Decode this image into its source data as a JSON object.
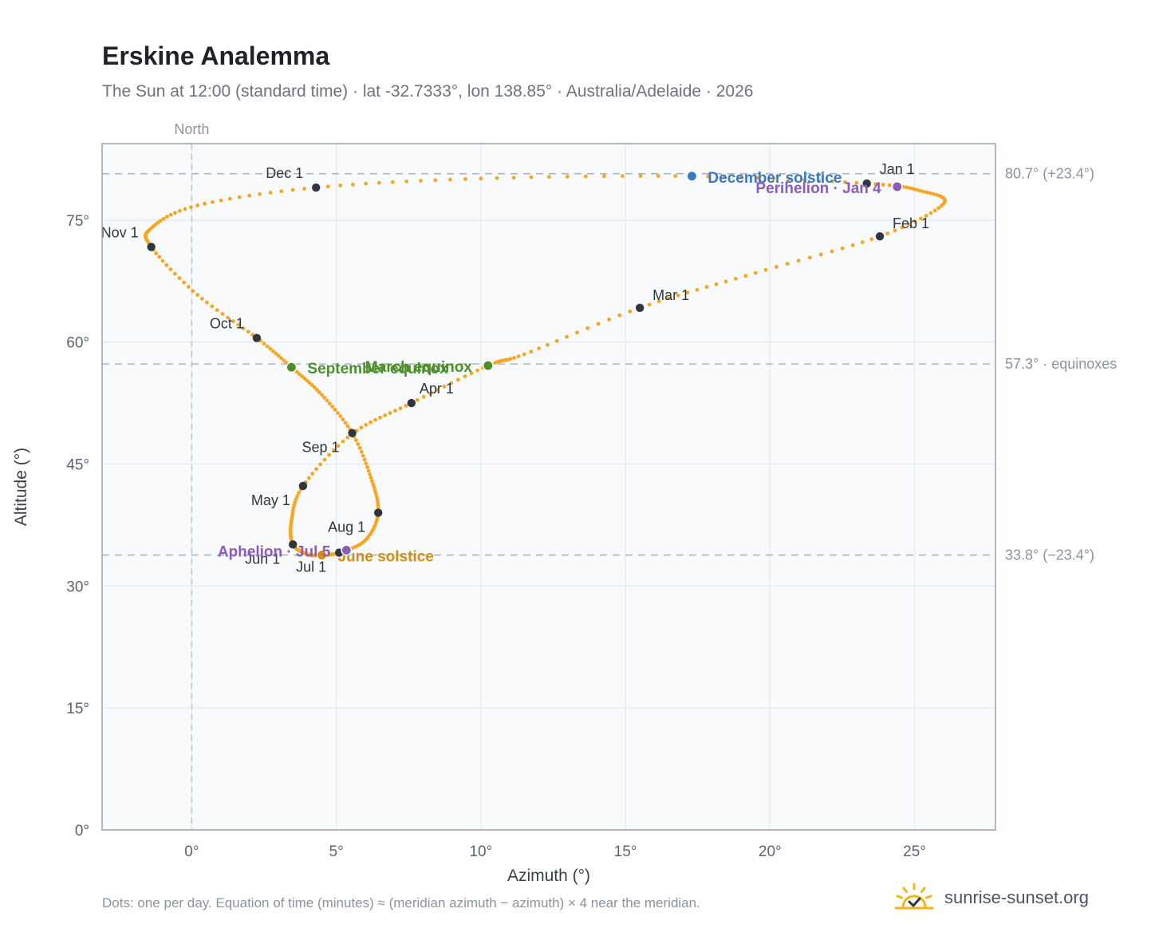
{
  "header": {
    "title": "Erskine Analemma",
    "subtitle": "The Sun at 12:00 (standard time) · lat -32.7333°, lon 138.85° · Australia/Adelaide · 2026"
  },
  "footer": {
    "note": "Dots: one per day. Equation of time (minutes) ≈ (meridian azimuth − azimuth) × 4 near the meridian.",
    "brand": "sunrise-sunset.org"
  },
  "icons": {
    "brand": "sun-check-icon"
  },
  "colors": {
    "dots": "#f5a623",
    "marker": "#2f3640",
    "equinox": "#4e8f2d",
    "december_solstice": "#3b78c2",
    "june_solstice": "#d18e16",
    "apsis": "#8b5cb8",
    "reference_line": "#aab4c0",
    "north_line": "#b6c8d8"
  },
  "chart_data": {
    "type": "scatter",
    "xlabel": "Azimuth (°)",
    "ylabel": "Altitude (°)",
    "xlim": [
      -3.1,
      27.8
    ],
    "ylim": [
      0,
      84.4
    ],
    "x_ticks": [
      0,
      5,
      10,
      15,
      20,
      25
    ],
    "x_tick_labels": [
      "0°",
      "5°",
      "10°",
      "15°",
      "20°",
      "25°"
    ],
    "y_ticks": [
      0,
      15,
      30,
      45,
      60,
      75
    ],
    "y_tick_labels": [
      "0°",
      "15°",
      "30°",
      "45°",
      "60°",
      "75°"
    ],
    "grid": true,
    "north_line": {
      "x": 0,
      "label": "North"
    },
    "reference_lines": [
      {
        "y": 80.7,
        "label": "80.7° (+23.4°)"
      },
      {
        "y": 57.3,
        "label": "57.3° · equinoxes"
      },
      {
        "y": 33.8,
        "label": "33.8° (−23.4°)"
      }
    ],
    "month_markers": [
      {
        "label": "Jan 1",
        "x": 23.35,
        "y": 79.5
      },
      {
        "label": "Feb 1",
        "x": 23.8,
        "y": 73.0
      },
      {
        "label": "Mar 1",
        "x": 15.5,
        "y": 64.2
      },
      {
        "label": "Apr 1",
        "x": 7.6,
        "y": 52.5
      },
      {
        "label": "May 1",
        "x": 3.85,
        "y": 42.3
      },
      {
        "label": "Jun 1",
        "x": 3.5,
        "y": 35.1
      },
      {
        "label": "Jul 1",
        "x": 5.1,
        "y": 34.1
      },
      {
        "label": "Aug 1",
        "x": 6.45,
        "y": 39.0
      },
      {
        "label": "Sep 1",
        "x": 5.55,
        "y": 48.8
      },
      {
        "label": "Oct 1",
        "x": 2.25,
        "y": 60.5
      },
      {
        "label": "Nov 1",
        "x": -1.4,
        "y": 71.7
      },
      {
        "label": "Dec 1",
        "x": 4.3,
        "y": 79.0
      }
    ],
    "events": [
      {
        "label": "December solstice",
        "x": 17.3,
        "y": 80.4,
        "color": "#3b78c2"
      },
      {
        "label": "Perihelion · Jan 4",
        "x": 24.4,
        "y": 79.1,
        "color": "#8b5cb8"
      },
      {
        "label": "March equinox",
        "x": 10.25,
        "y": 57.1,
        "color": "#4e8f2d"
      },
      {
        "label": "September equinox",
        "x": 3.45,
        "y": 56.9,
        "color": "#4e8f2d"
      },
      {
        "label": "June solstice",
        "x": 4.5,
        "y": 33.8,
        "color": "#d18e16"
      },
      {
        "label": "Aphelion · Jul 5",
        "x": 5.35,
        "y": 34.4,
        "color": "#8b5cb8"
      }
    ],
    "daily_path": [
      [
        23.35,
        79.5
      ],
      [
        25.2,
        78.6
      ],
      [
        26.0,
        77.0
      ],
      [
        23.8,
        73.0
      ],
      [
        19.5,
        68.5
      ],
      [
        15.5,
        64.2
      ],
      [
        11.5,
        58.5
      ],
      [
        10.25,
        57.1
      ],
      [
        7.6,
        52.5
      ],
      [
        5.55,
        48.7
      ],
      [
        3.85,
        42.3
      ],
      [
        3.45,
        38.0
      ],
      [
        3.5,
        35.1
      ],
      [
        4.0,
        33.9
      ],
      [
        4.5,
        33.8
      ],
      [
        5.1,
        34.1
      ],
      [
        6.0,
        35.6
      ],
      [
        6.45,
        39.0
      ],
      [
        6.2,
        43.3
      ],
      [
        5.55,
        48.8
      ],
      [
        4.5,
        53.5
      ],
      [
        3.45,
        56.9
      ],
      [
        2.25,
        60.5
      ],
      [
        0.2,
        65.8
      ],
      [
        -1.4,
        71.7
      ],
      [
        -1.4,
        74.0
      ],
      [
        0.2,
        76.8
      ],
      [
        4.3,
        79.0
      ],
      [
        10.0,
        80.1
      ],
      [
        17.3,
        80.4
      ],
      [
        23.35,
        79.5
      ]
    ]
  }
}
